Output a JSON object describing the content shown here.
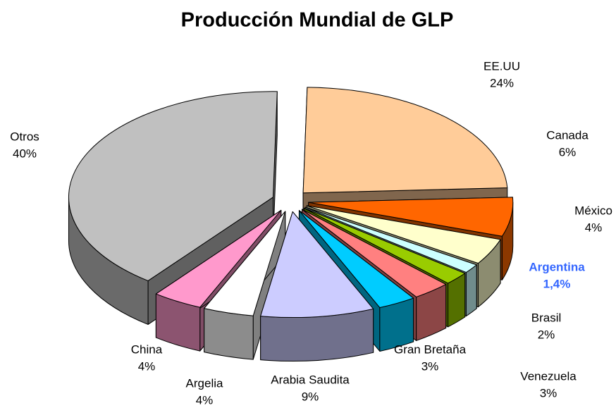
{
  "chart_data": {
    "type": "pie3d",
    "title": "Producción Mundial de GLP",
    "categories": [
      "EE.UU",
      "Canada",
      "México",
      "Argentina",
      "Brasil",
      "Venezuela",
      "Gran Bretaña",
      "Arabia Saudita",
      "Argelia",
      "China",
      "Otros"
    ],
    "values": [
      24,
      6,
      4,
      1.4,
      2,
      3,
      3,
      9,
      4,
      4,
      40
    ],
    "value_labels": [
      "24%",
      "6%",
      "4%",
      "1,4%",
      "2%",
      "3%",
      "3%",
      "9%",
      "4%",
      "4%",
      "40%"
    ],
    "colors": [
      "#ffcc99",
      "#ff6600",
      "#ffffcc",
      "#ccffff",
      "#99cc00",
      "#ff8080",
      "#00ccff",
      "#ccccff",
      "#ffffff",
      "#ff99cc",
      "#c0c0c0"
    ]
  }
}
